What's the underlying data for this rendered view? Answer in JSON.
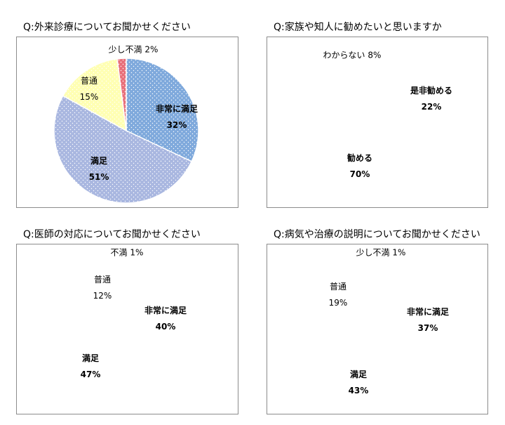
{
  "colors": {
    "非常に満足": "#7fa9dc",
    "是非勧める": "#7fa9dc",
    "満足": "#a9b7e0",
    "勧める": "#a9b7e0",
    "普通": "#ffffb3",
    "わからない": "#ffffb3",
    "少し不満": "#e8707a",
    "不満": "#e8707a"
  },
  "chart_data": [
    {
      "type": "pie",
      "title": "Q:外来診療についてお聞かせください",
      "slices": [
        {
          "label": "非常に満足",
          "value": 32,
          "pct": "32%"
        },
        {
          "label": "満足",
          "value": 51,
          "pct": "51%"
        },
        {
          "label": "普通",
          "value": 15,
          "pct": "15%"
        },
        {
          "label": "少し不満",
          "value": 2,
          "pct": "2%"
        }
      ]
    },
    {
      "type": "pie",
      "title": "Q:家族や知人に勧めたいと思いますか",
      "slices": [
        {
          "label": "是非勧める",
          "value": 22,
          "pct": "22%"
        },
        {
          "label": "勧める",
          "value": 70,
          "pct": "70%"
        },
        {
          "label": "わからない",
          "value": 8,
          "pct": "8%"
        }
      ]
    },
    {
      "type": "pie",
      "title": "Q:医師の対応についてお聞かせください",
      "slices": [
        {
          "label": "非常に満足",
          "value": 40,
          "pct": "40%"
        },
        {
          "label": "満足",
          "value": 47,
          "pct": "47%"
        },
        {
          "label": "普通",
          "value": 12,
          "pct": "12%"
        },
        {
          "label": "不満",
          "value": 1,
          "pct": "1%"
        }
      ]
    },
    {
      "type": "pie",
      "title": "Q:病気や治療の説明についてお聞かせください",
      "slices": [
        {
          "label": "非常に満足",
          "value": 37,
          "pct": "37%"
        },
        {
          "label": "満足",
          "value": 43,
          "pct": "43%"
        },
        {
          "label": "普通",
          "value": 19,
          "pct": "19%"
        },
        {
          "label": "少し不満",
          "value": 1,
          "pct": "1%"
        }
      ]
    }
  ]
}
